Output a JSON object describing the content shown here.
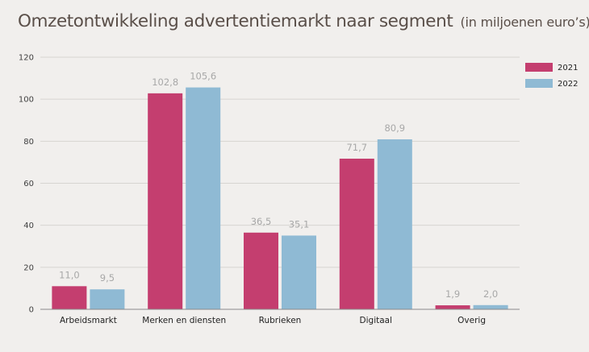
{
  "chart_data": {
    "type": "bar",
    "title": "Omzetontwikkeling advertentiemarkt naar segment",
    "subtitle": "(in miljoenen euro’s)",
    "categories": [
      "Arbeidsmarkt",
      "Merken en diensten",
      "Rubrieken",
      "Digitaal",
      "Overig"
    ],
    "series": [
      {
        "name": "2021",
        "color": "#c43e6f",
        "values": [
          11.0,
          102.8,
          36.5,
          71.7,
          1.9
        ],
        "labels": [
          "11,0",
          "102,8",
          "36,5",
          "71,7",
          "1,9"
        ]
      },
      {
        "name": "2022",
        "color": "#8fbad4",
        "values": [
          9.5,
          105.6,
          35.1,
          80.9,
          2.0
        ],
        "labels": [
          "9,5",
          "105,6",
          "35,1",
          "80,9",
          "2,0"
        ]
      }
    ],
    "ylim": [
      0,
      120
    ],
    "yticks": [
      0,
      20,
      40,
      60,
      80,
      100,
      120
    ],
    "grid": true,
    "legend": "top-right"
  }
}
